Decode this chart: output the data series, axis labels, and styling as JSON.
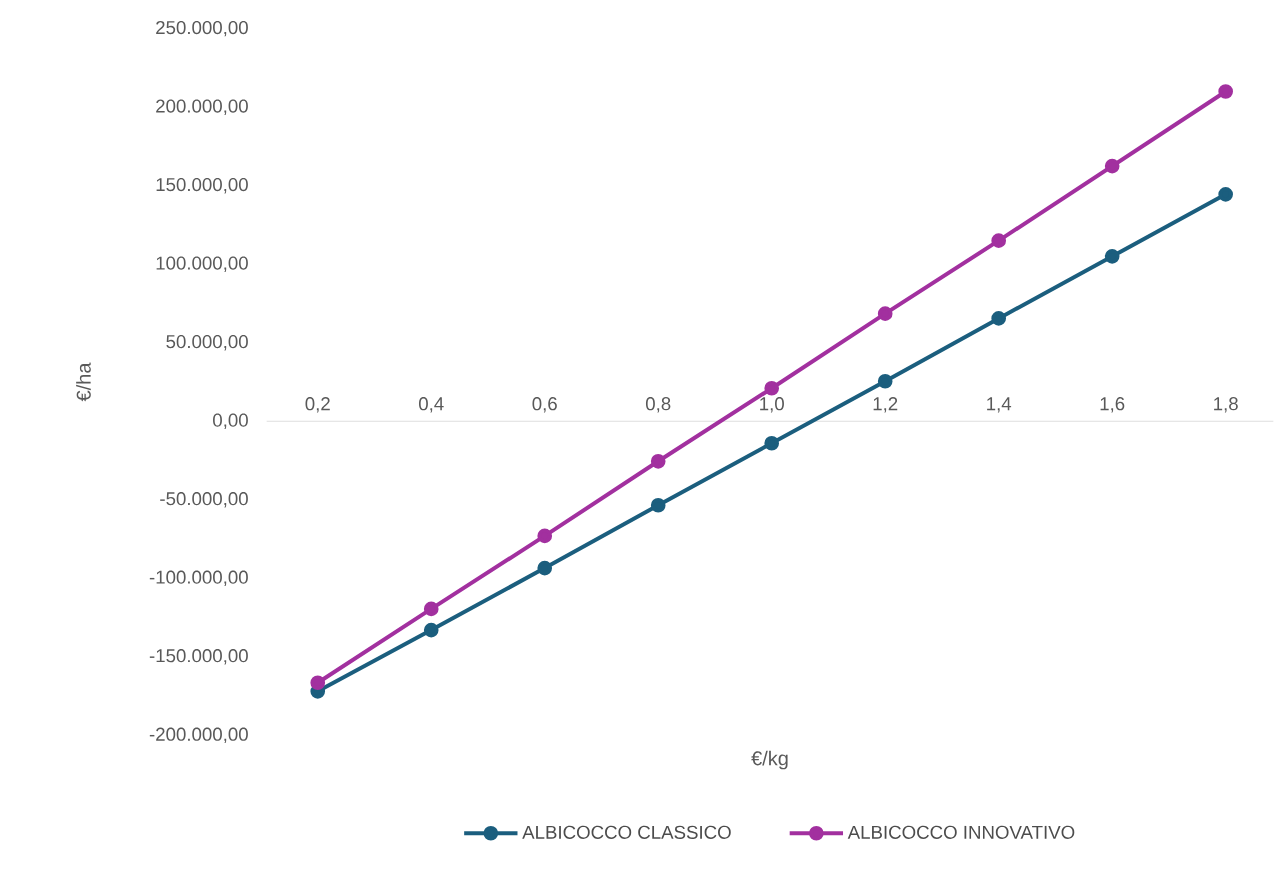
{
  "chart_data": {
    "type": "line",
    "xlabel": "€/kg",
    "ylabel": "€/ha",
    "categories": [
      "0,2",
      "0,4",
      "0,6",
      "0,8",
      "1,0",
      "1,2",
      "1,4",
      "1,6",
      "1,8"
    ],
    "series": [
      {
        "name": "ALBICOCCO CLASSICO",
        "color": "#1b5e7e",
        "values": [
          -172000,
          -133000,
          -93500,
          -53500,
          -14000,
          25500,
          65500,
          105000,
          144500
        ]
      },
      {
        "name": "ALBICOCCO INNOVATIVO",
        "color": "#a2309f",
        "values": [
          -166500,
          -119500,
          -73000,
          -25500,
          21000,
          68500,
          115000,
          162500,
          210000
        ]
      }
    ],
    "ylim": [
      -200000,
      250000
    ],
    "yticks": [
      {
        "value": -200000,
        "label": "-200.000,00"
      },
      {
        "value": -150000,
        "label": "-150.000,00"
      },
      {
        "value": -100000,
        "label": "-100.000,00"
      },
      {
        "value": -50000,
        "label": "-50.000,00"
      },
      {
        "value": 0,
        "label": "0,00"
      },
      {
        "value": 50000,
        "label": "50.000,00"
      },
      {
        "value": 100000,
        "label": "100.000,00"
      },
      {
        "value": 150000,
        "label": "150.000,00"
      },
      {
        "value": 200000,
        "label": "200.000,00"
      },
      {
        "value": 250000,
        "label": "250.000,00"
      }
    ],
    "legend": "bottom",
    "marker": "circle",
    "line_style": "solid"
  }
}
